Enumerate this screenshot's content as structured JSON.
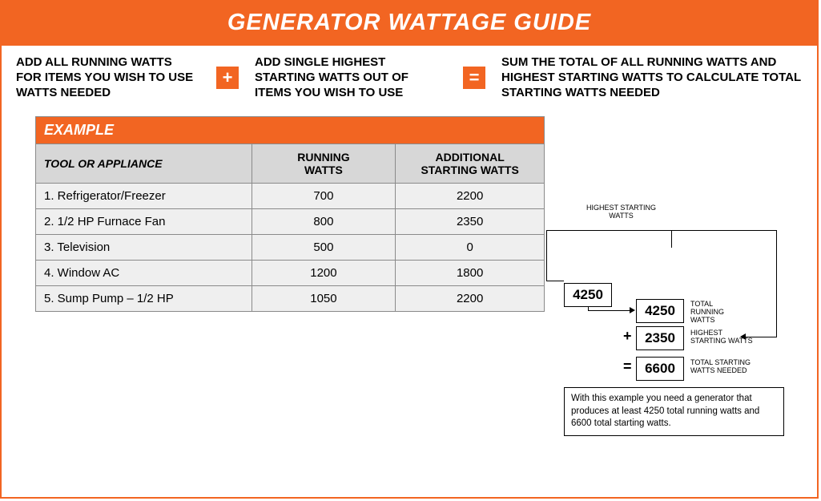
{
  "colors": {
    "accent": "#f26522",
    "header_row_bg": "#d7d7d7",
    "data_row_bg": "#efefef",
    "border": "#8a8a8a",
    "text": "#000000",
    "bg": "#ffffff"
  },
  "title": "GENERATOR WATTAGE GUIDE",
  "instructions": {
    "col1": "ADD ALL RUNNING WATTS FOR ITEMS YOU WISH TO USE WATTS NEEDED",
    "op1": "+",
    "col2": "ADD SINGLE HIGHEST STARTING WATTS OUT OF ITEMS YOU WISH TO USE",
    "op2": "=",
    "col3": "SUM THE TOTAL OF ALL RUNNING WATTS AND HIGHEST STARTING WATTS TO CALCULATE TOTAL STARTING WATTS NEEDED"
  },
  "table": {
    "example_label": "EXAMPLE",
    "columns": [
      "TOOL OR APPLIANCE",
      "RUNNING WATTS",
      "ADDITIONAL STARTING WATTS"
    ],
    "rows": [
      {
        "name": "1. Refrigerator/Freezer",
        "running": "700",
        "starting": "2200"
      },
      {
        "name": "2. 1/2 HP Furnace Fan",
        "running": "800",
        "starting": "2350"
      },
      {
        "name": "3. Television",
        "running": "500",
        "starting": "0"
      },
      {
        "name": "4. Window AC",
        "running": "1200",
        "starting": "1800"
      },
      {
        "name": "5. Sump Pump – 1/2 HP",
        "running": "1050",
        "starting": "2200"
      }
    ]
  },
  "diagram": {
    "top_label_line1": "HIGHEST STARTING",
    "top_label_line2": "WATTS",
    "running_total_box": "4250",
    "running_total_box2": "4250",
    "running_caption_line1": "TOTAL",
    "running_caption_line2": "RUNNING",
    "running_caption_line3": "WATTS",
    "highest_starting_box": "2350",
    "highest_starting_caption_line1": "HIGHEST",
    "highest_starting_caption_line2": "STARTING WATTS",
    "plus": "+",
    "eq": "=",
    "total_box": "6600",
    "total_caption_line1": "TOTAL STARTING",
    "total_caption_line2": "WATTS NEEDED",
    "note": "With this example you need a generator that produces at least 4250 total running watts and 6600 total starting watts."
  }
}
